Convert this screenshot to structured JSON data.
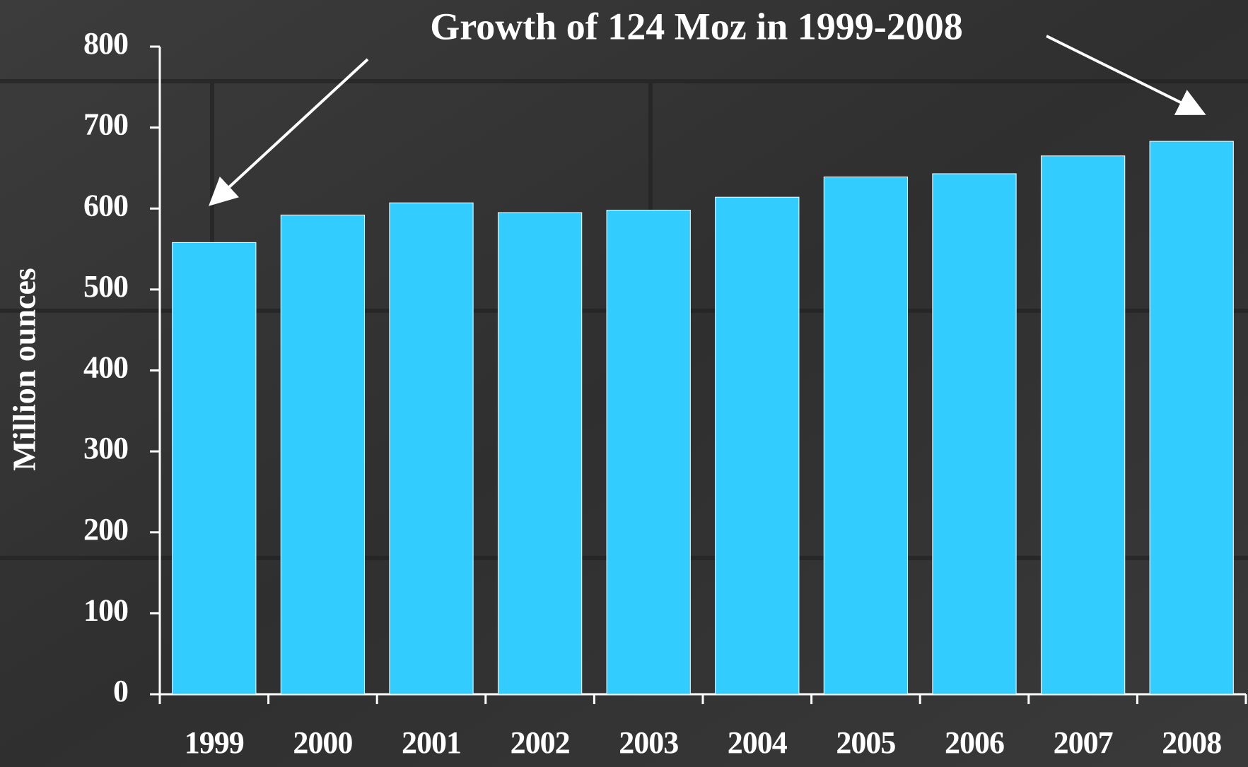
{
  "chart_data": {
    "type": "bar",
    "title": "Growth of 124 Moz in 1999-2008",
    "y_label": "Million ounces",
    "categories": [
      "1999",
      "2000",
      "2001",
      "2002",
      "2003",
      "2004",
      "2005",
      "2006",
      "2007",
      "2008"
    ],
    "values": [
      558,
      592,
      607,
      595,
      598,
      614,
      639,
      643,
      665,
      683
    ],
    "color": "#33ccff",
    "ylim": [
      0,
      800
    ],
    "yticks": [
      0,
      100,
      200,
      300,
      400,
      500,
      600,
      700,
      800
    ],
    "grid": false
  }
}
